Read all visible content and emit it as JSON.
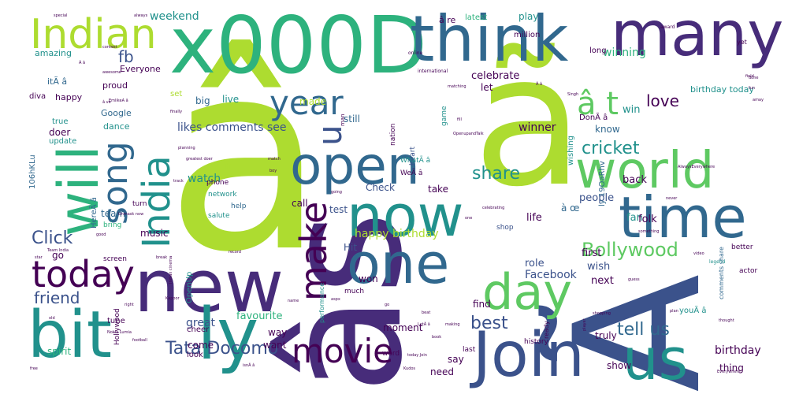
{
  "palette": {
    "dark_purple": "#440154",
    "indigo": "#3b528b",
    "blue": "#31688e",
    "teal": "#21918c",
    "sea_green": "#2db27d",
    "green": "#5ec962",
    "lime": "#addc30",
    "light_purple": "#472c7a",
    "background": "#ffffff"
  },
  "words": [
    {
      "text": "â",
      "weight": 100
    },
    {
      "text": "âs",
      "weight": 90
    },
    {
      "text": "x000D",
      "weight": 80
    },
    {
      "text": "ã",
      "weight": 78
    },
    {
      "text": "Ã",
      "weight": 76
    },
    {
      "text": "think",
      "weight": 60
    },
    {
      "text": "many",
      "weight": 58
    },
    {
      "text": "new",
      "weight": 56
    },
    {
      "text": "bit",
      "weight": 55
    },
    {
      "text": "ly",
      "weight": 54
    },
    {
      "text": "Join",
      "weight": 53
    },
    {
      "text": "us",
      "weight": 52
    },
    {
      "text": "time",
      "weight": 50
    },
    {
      "text": "world",
      "weight": 49
    },
    {
      "text": "will",
      "weight": 48
    },
    {
      "text": "now",
      "weight": 47
    },
    {
      "text": "one",
      "weight": 46
    },
    {
      "text": "open",
      "weight": 45
    },
    {
      "text": "day",
      "weight": 44
    },
    {
      "text": "India",
      "weight": 43
    },
    {
      "text": "Indian",
      "weight": 42
    },
    {
      "text": "today",
      "weight": 41
    },
    {
      "text": "movie",
      "weight": 40
    },
    {
      "text": "year",
      "weight": 39
    },
    {
      "text": "song",
      "weight": 38
    },
    {
      "text": "make",
      "weight": 37
    },
    {
      "text": "u",
      "weight": 36
    },
    {
      "text": "â t",
      "weight": 35
    },
    {
      "text": "Bollywood",
      "weight": 30
    },
    {
      "text": "Tata Docomo",
      "weight": 29
    },
    {
      "text": "tell us",
      "weight": 28
    },
    {
      "text": "best",
      "weight": 27
    },
    {
      "text": "share",
      "weight": 26
    },
    {
      "text": "cricket",
      "weight": 25
    },
    {
      "text": "Click",
      "weight": 24
    },
    {
      "text": "friend",
      "weight": 23
    },
    {
      "text": "love",
      "weight": 22
    },
    {
      "text": "fb",
      "weight": 21
    },
    {
      "text": "happy birthday",
      "weight": 18
    },
    {
      "text": "likes comments see",
      "weight": 17
    },
    {
      "text": "Facebook",
      "weight": 17
    },
    {
      "text": "birthday",
      "weight": 16
    },
    {
      "text": "winner",
      "weight": 16
    },
    {
      "text": "winning",
      "weight": 16
    },
    {
      "text": "weekend",
      "weight": 16
    },
    {
      "text": "celebrate",
      "weight": 15
    },
    {
      "text": "favourite",
      "weight": 15
    },
    {
      "text": "people",
      "weight": 15
    },
    {
      "text": "watch",
      "weight": 15
    },
    {
      "text": "great",
      "weight": 15
    },
    {
      "text": "even",
      "weight": 14
    },
    {
      "text": "back",
      "weight": 14
    },
    {
      "text": "first",
      "weight": 14
    },
    {
      "text": "life",
      "weight": 14
    },
    {
      "text": "next",
      "weight": 14
    },
    {
      "text": "role",
      "weight": 14
    },
    {
      "text": "fan",
      "weight": 14
    },
    {
      "text": "folk",
      "weight": 14
    },
    {
      "text": "wish",
      "weight": 14
    },
    {
      "text": "win",
      "weight": 14
    },
    {
      "text": "know",
      "weight": 13
    },
    {
      "text": "play",
      "weight": 13
    },
    {
      "text": "test",
      "weight": 13
    },
    {
      "text": "Check",
      "weight": 13
    },
    {
      "text": "take",
      "weight": 13
    },
    {
      "text": "call",
      "weight": 13
    },
    {
      "text": "still",
      "weight": 13
    },
    {
      "text": "live",
      "weight": 13
    },
    {
      "text": "big",
      "weight": 13
    },
    {
      "text": "made",
      "weight": 13
    },
    {
      "text": "let",
      "weight": 13
    },
    {
      "text": "music",
      "weight": 13
    },
    {
      "text": "team",
      "weight": 13
    },
    {
      "text": "come",
      "weight": 13
    },
    {
      "text": "truly",
      "weight": 13
    },
    {
      "text": "show",
      "weight": 13
    },
    {
      "text": "thing",
      "weight": 13
    },
    {
      "text": "say",
      "weight": 13
    },
    {
      "text": "need",
      "weight": 13
    },
    {
      "text": "moment",
      "weight": 13
    },
    {
      "text": "way",
      "weight": 13
    },
    {
      "text": "want",
      "weight": 13
    },
    {
      "text": "find",
      "weight": 13
    },
    {
      "text": "won",
      "weight": 13
    },
    {
      "text": "Hit",
      "weight": 13
    },
    {
      "text": "go",
      "weight": 13
    },
    {
      "text": "spirit",
      "weight": 12
    },
    {
      "text": "friend",
      "weight": 12
    },
    {
      "text": "doer",
      "weight": 12
    },
    {
      "text": "Google",
      "weight": 12
    },
    {
      "text": "happy",
      "weight": 12
    },
    {
      "text": "proud",
      "weight": 12
    },
    {
      "text": "dance",
      "weight": 11
    },
    {
      "text": "itÃ â",
      "weight": 12
    },
    {
      "text": "fb",
      "weight": 11
    },
    {
      "text": "amazing",
      "weight": 11
    },
    {
      "text": "Everyone",
      "weight": 11
    },
    {
      "text": "birthday today",
      "weight": 11
    },
    {
      "text": "â re",
      "weight": 12
    },
    {
      "text": "latest",
      "weight": 10
    },
    {
      "text": "million",
      "weight": 10
    },
    {
      "text": "long",
      "weight": 10
    },
    {
      "text": "DonÃ â",
      "weight": 10
    },
    {
      "text": "youÃ â",
      "weight": 10
    },
    {
      "text": "wishing",
      "weight": 10
    },
    {
      "text": "ly 19OaRhv",
      "weight": 10
    },
    {
      "text": "à œ",
      "weight": 11
    },
    {
      "text": "true",
      "weight": 10
    },
    {
      "text": "update",
      "weight": 10
    },
    {
      "text": "diva",
      "weight": 10
    },
    {
      "text": "106hKLu",
      "weight": 10
    },
    {
      "text": "HereÃ â",
      "weight": 10
    },
    {
      "text": "tune",
      "weight": 10
    },
    {
      "text": "Hollywood",
      "weight": 9
    },
    {
      "text": "cheer",
      "weight": 10
    },
    {
      "text": "look",
      "weight": 10
    },
    {
      "text": "OpenUp",
      "weight": 10
    },
    {
      "text": "phone",
      "weight": 9
    },
    {
      "text": "network",
      "weight": 9
    },
    {
      "text": "help",
      "weight": 9
    },
    {
      "text": "salute",
      "weight": 9
    },
    {
      "text": "turn",
      "weight": 9
    },
    {
      "text": "screen",
      "weight": 9
    },
    {
      "text": "bring",
      "weight": 9
    },
    {
      "text": "performance",
      "weight": 8
    },
    {
      "text": "much",
      "weight": 9
    },
    {
      "text": "word",
      "weight": 9
    },
    {
      "text": "history",
      "weight": 9
    },
    {
      "text": "last",
      "weight": 9
    },
    {
      "text": "ready",
      "weight": 8
    },
    {
      "text": "shop",
      "weight": 9
    },
    {
      "text": "heart",
      "weight": 9
    },
    {
      "text": "nation",
      "weight": 9
    },
    {
      "text": "game",
      "weight": 9
    },
    {
      "text": "WeÃ â",
      "weight": 9
    },
    {
      "text": "WhatÃ â",
      "weight": 9
    },
    {
      "text": "actor",
      "weight": 9
    },
    {
      "text": "better",
      "weight": 9
    },
    {
      "text": "comments share",
      "weight": 8
    },
    {
      "text": "legend",
      "weight": 6
    },
    {
      "text": "set",
      "weight": 10
    },
    {
      "text": "man",
      "weight": 7
    },
    {
      "text": "yet",
      "weight": 8
    },
    {
      "text": "award",
      "weight": 6
    },
    {
      "text": "online",
      "weight": 6
    },
    {
      "text": "international",
      "weight": 6
    },
    {
      "text": "contest",
      "weight": 5
    },
    {
      "text": "special",
      "weight": 5
    },
    {
      "text": "always",
      "weight": 5
    },
    {
      "text": "awesome",
      "weight": 5
    },
    {
      "text": "finally",
      "weight": 5
    },
    {
      "text": "Singh",
      "weight": 5
    },
    {
      "text": "field",
      "weight": 5
    },
    {
      "text": "fun",
      "weight": 5
    },
    {
      "text": "done",
      "weight": 5
    },
    {
      "text": "planning",
      "weight": 5
    },
    {
      "text": "greatest doer",
      "weight": 5
    },
    {
      "text": "match",
      "weight": 5
    },
    {
      "text": "boy",
      "weight": 5
    },
    {
      "text": "track",
      "weight": 5
    },
    {
      "text": "going",
      "weight": 5
    },
    {
      "text": "Unmask now",
      "weight": 5
    },
    {
      "text": "good",
      "weight": 5
    },
    {
      "text": "Team India",
      "weight": 5
    },
    {
      "text": "star",
      "weight": 5
    },
    {
      "text": "break",
      "weight": 5
    },
    {
      "text": "record",
      "weight": 5
    },
    {
      "text": "Indian cinema",
      "weight": 5
    },
    {
      "text": "right",
      "weight": 5
    },
    {
      "text": "Kapoor",
      "weight": 5
    },
    {
      "text": "Nokia Lumia",
      "weight": 5
    },
    {
      "text": "old",
      "weight": 5
    },
    {
      "text": "football",
      "weight": 5
    },
    {
      "text": "free",
      "weight": 5
    },
    {
      "text": "isnÃ â",
      "weight": 5
    },
    {
      "text": "name",
      "weight": 5
    },
    {
      "text": "aspx",
      "weight": 5
    },
    {
      "text": "Kudos",
      "weight": 5
    },
    {
      "text": "today Join",
      "weight": 5
    },
    {
      "text": "book",
      "weight": 5
    },
    {
      "text": "LetÃ â",
      "weight": 5
    },
    {
      "text": "beat",
      "weight": 5
    },
    {
      "text": "making",
      "weight": 5
    },
    {
      "text": "shopping",
      "weight": 5
    },
    {
      "text": "plan",
      "weight": 5
    },
    {
      "text": "thought",
      "weight": 5
    },
    {
      "text": "video",
      "weight": 5
    },
    {
      "text": "guess",
      "weight": 5
    },
    {
      "text": "Everywhere",
      "weight": 5
    },
    {
      "text": "something",
      "weight": 5
    },
    {
      "text": "never",
      "weight": 5
    },
    {
      "text": "celebrating",
      "weight": 5
    },
    {
      "text": "OpenupandTalk",
      "weight": 5
    },
    {
      "text": "matching",
      "weight": 5
    },
    {
      "text": "player",
      "weight": 5
    },
    {
      "text": "AlwaysEverywhere",
      "weight": 5
    },
    {
      "text": "EmlikeA â",
      "weight": 5
    },
    {
      "text": "Ã â",
      "weight": 5
    },
    {
      "text": "Ã â",
      "weight": 5
    },
    {
      "text": "â ve",
      "weight": 5
    },
    {
      "text": "amay",
      "weight": 5
    },
    {
      "text": "fill",
      "weight": 5
    },
    {
      "text": "go",
      "weight": 5
    },
    {
      "text": "one",
      "weight": 5
    },
    {
      "text": "gift",
      "weight": 5
    }
  ]
}
